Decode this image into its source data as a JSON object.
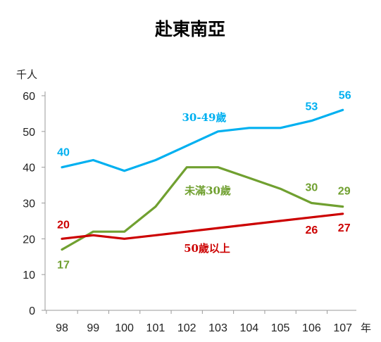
{
  "chart_data": {
    "type": "line",
    "title": "赴東南亞",
    "y_unit": "千人",
    "x_unit": "年",
    "categories": [
      "98",
      "99",
      "100",
      "101",
      "102",
      "103",
      "104",
      "105",
      "106",
      "107"
    ],
    "ylim": [
      0,
      60
    ],
    "yticks": [
      0,
      10,
      20,
      30,
      40,
      50,
      60
    ],
    "grid": false,
    "series": [
      {
        "name": "30-49歲",
        "color": "#00B0F0",
        "values": [
          40,
          42,
          39,
          42,
          46,
          50,
          51,
          51,
          53,
          56
        ],
        "labels": [
          {
            "index": 0,
            "text": "40"
          },
          {
            "index": 8,
            "text": "53"
          },
          {
            "index": 9,
            "text": "56"
          }
        ]
      },
      {
        "name": "未滿30歲",
        "color": "#70A030",
        "values": [
          17,
          22,
          22,
          29,
          40,
          40,
          37,
          34,
          30,
          29
        ],
        "labels": [
          {
            "index": 0,
            "text": "17"
          },
          {
            "index": 8,
            "text": "30"
          },
          {
            "index": 9,
            "text": "29"
          }
        ]
      },
      {
        "name": "50歲以上",
        "color": "#CC0000",
        "values": [
          20,
          21,
          20,
          21,
          22,
          23,
          24,
          25,
          26,
          27
        ],
        "labels": [
          {
            "index": 0,
            "text": "20"
          },
          {
            "index": 8,
            "text": "26"
          },
          {
            "index": 9,
            "text": "27"
          }
        ]
      }
    ]
  }
}
